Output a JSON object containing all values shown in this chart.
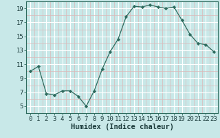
{
  "x": [
    0,
    1,
    2,
    3,
    4,
    5,
    6,
    7,
    8,
    9,
    10,
    11,
    12,
    13,
    14,
    15,
    16,
    17,
    18,
    19,
    20,
    21,
    22,
    23
  ],
  "y": [
    10.0,
    10.7,
    6.8,
    6.6,
    7.2,
    7.2,
    6.4,
    5.0,
    7.2,
    10.3,
    12.8,
    14.6,
    17.8,
    19.3,
    19.2,
    19.5,
    19.2,
    19.0,
    19.2,
    17.3,
    15.3,
    14.0,
    13.8,
    12.8
  ],
  "line_color": "#2e6b5e",
  "marker": "D",
  "marker_size": 2.2,
  "bg_color": "#c8e8e8",
  "plot_bg_color": "#c8e8e8",
  "grid_major_color": "#ffffff",
  "grid_minor_color": "#dbb8b8",
  "xlabel": "Humidex (Indice chaleur)",
  "xlim": [
    -0.5,
    23.5
  ],
  "ylim": [
    4.0,
    20.0
  ],
  "ytick_values": [
    5,
    7,
    9,
    11,
    13,
    15,
    17,
    19
  ],
  "xlabel_fontsize": 7.5,
  "tick_fontsize": 6.5,
  "spine_color": "#2e6b5e"
}
